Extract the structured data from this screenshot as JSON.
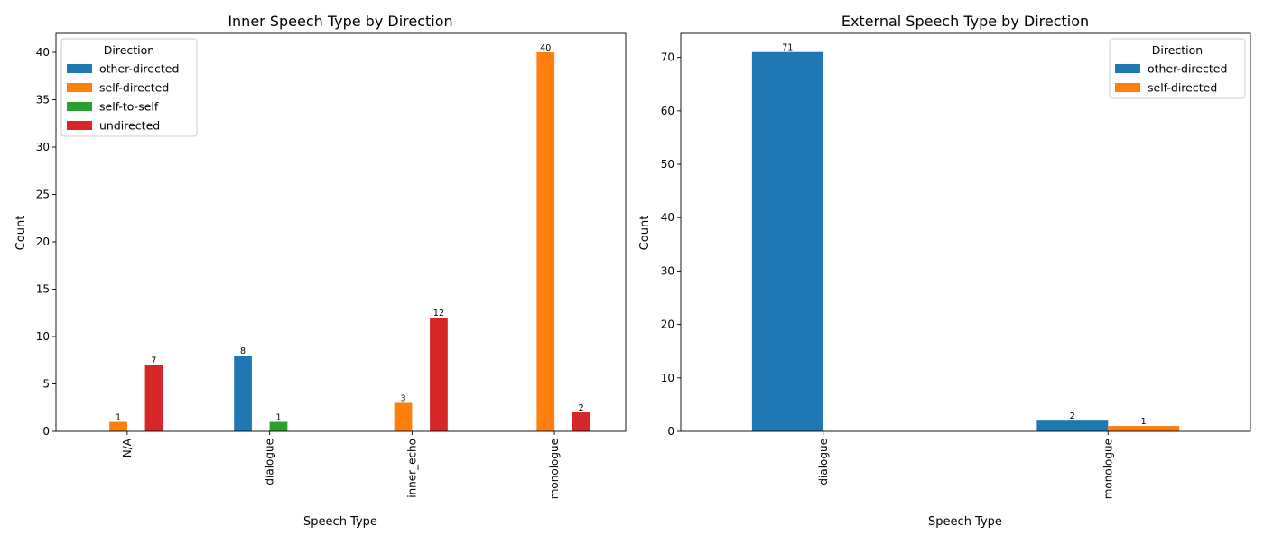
{
  "chart_data": [
    {
      "type": "bar",
      "title": "Inner Speech Type by Direction",
      "xlabel": "Speech Type",
      "ylabel": "Count",
      "categories": [
        "N/A",
        "dialogue",
        "inner_echo",
        "monologue"
      ],
      "ylim": [
        0,
        42
      ],
      "yticks": [
        0,
        5,
        10,
        15,
        20,
        25,
        30,
        35,
        40
      ],
      "legend": {
        "title": "Direction",
        "placement": "top-left"
      },
      "series": [
        {
          "name": "other-directed",
          "color": "#1f77b4",
          "values": [
            0,
            8,
            0,
            0
          ]
        },
        {
          "name": "self-directed",
          "color": "#ff7f0e",
          "values": [
            1,
            0,
            3,
            40
          ]
        },
        {
          "name": "self-to-self",
          "color": "#2ca02c",
          "values": [
            0,
            1,
            0,
            0
          ]
        },
        {
          "name": "undirected",
          "color": "#d62728",
          "values": [
            7,
            0,
            12,
            2
          ]
        }
      ]
    },
    {
      "type": "bar",
      "title": "External Speech Type by Direction",
      "xlabel": "Speech Type",
      "ylabel": "Count",
      "categories": [
        "dialogue",
        "monologue"
      ],
      "ylim": [
        0,
        74.5
      ],
      "yticks": [
        0,
        10,
        20,
        30,
        40,
        50,
        60,
        70
      ],
      "legend": {
        "title": "Direction",
        "placement": "top-right"
      },
      "series": [
        {
          "name": "other-directed",
          "color": "#1f77b4",
          "values": [
            71,
            2
          ]
        },
        {
          "name": "self-directed",
          "color": "#ff7f0e",
          "values": [
            0,
            1
          ]
        }
      ]
    }
  ]
}
